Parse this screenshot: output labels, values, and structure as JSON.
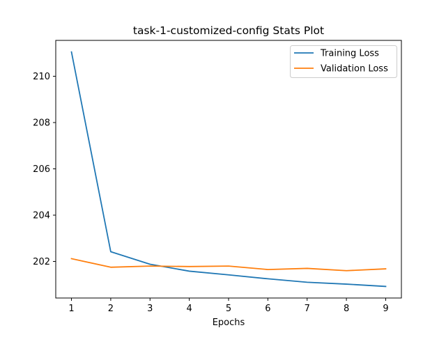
{
  "chart_data": {
    "type": "line",
    "title": "task-1-customized-config Stats Plot",
    "xlabel": "Epochs",
    "ylabel": "",
    "x": [
      1,
      2,
      3,
      4,
      5,
      6,
      7,
      8,
      9
    ],
    "xticks": [
      1,
      2,
      3,
      4,
      5,
      6,
      7,
      8,
      9
    ],
    "yticks": [
      202,
      204,
      206,
      208,
      210
    ],
    "xlim": [
      0.6,
      9.4
    ],
    "ylim": [
      200.42,
      211.55
    ],
    "grid": false,
    "legend_position": "top-right",
    "series": [
      {
        "name": "Training Loss",
        "color": "#1f77b4",
        "values": [
          211.05,
          202.42,
          201.88,
          201.58,
          201.42,
          201.25,
          201.1,
          201.02,
          200.92
        ]
      },
      {
        "name": "Validation Loss",
        "color": "#ff7f0e",
        "values": [
          202.12,
          201.75,
          201.8,
          201.78,
          201.8,
          201.65,
          201.7,
          201.6,
          201.68
        ]
      }
    ]
  }
}
